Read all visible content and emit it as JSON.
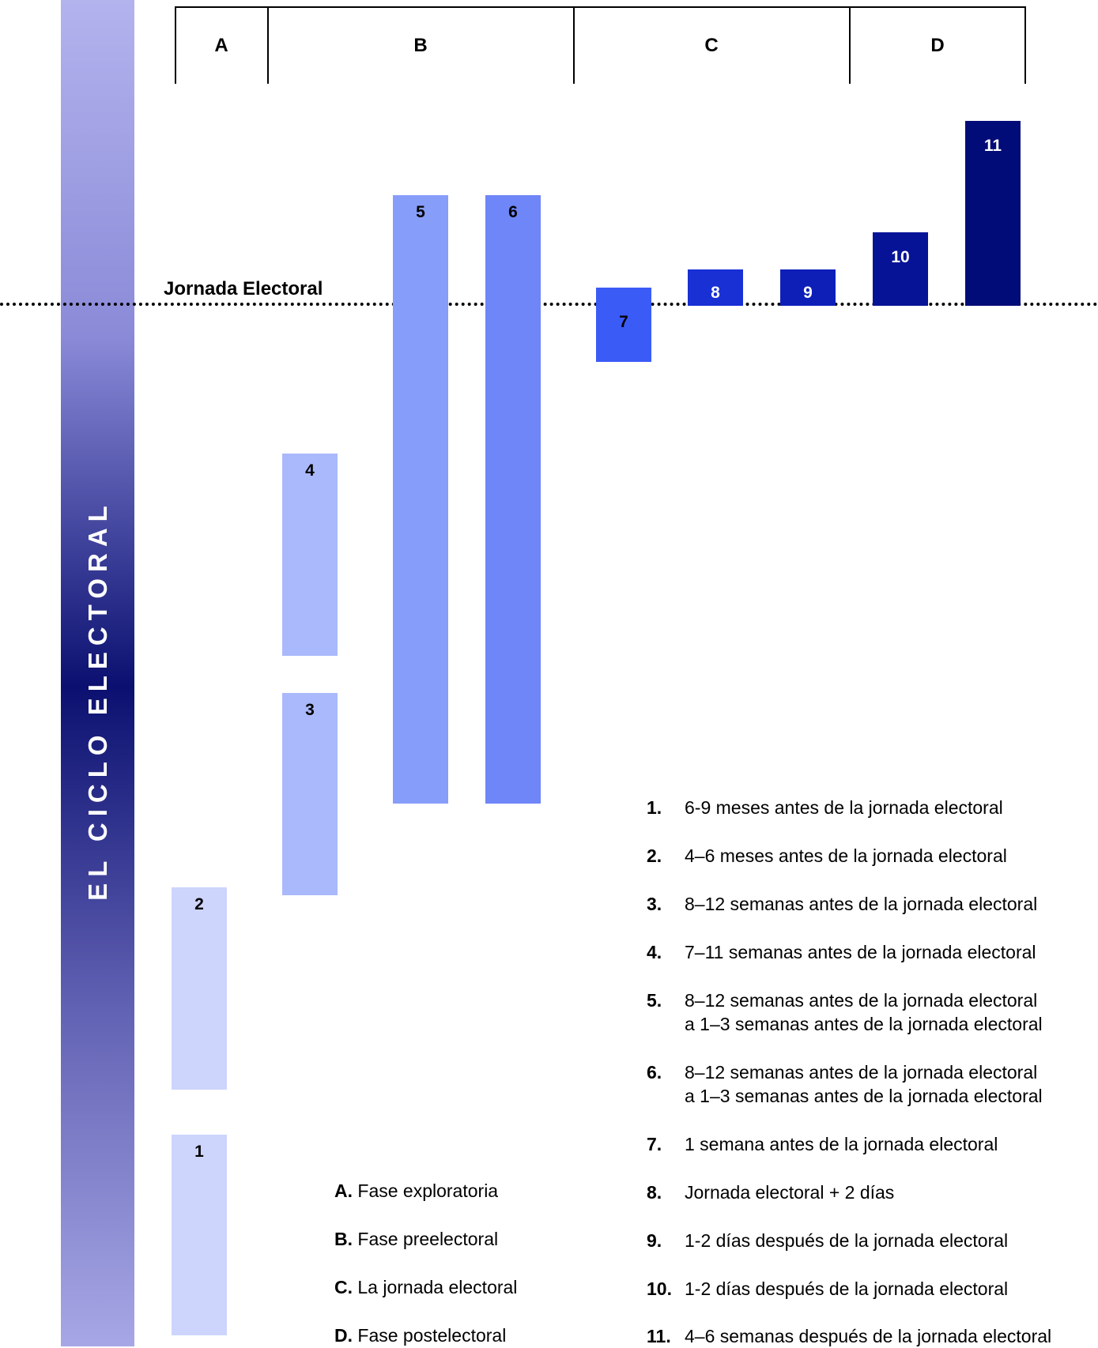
{
  "sidebar": {
    "title": "EL CICLO ELECTORAL",
    "color": "#0b1070"
  },
  "timeline_label": "Jornada Electoral",
  "phases": [
    {
      "letter": "A"
    },
    {
      "letter": "B"
    },
    {
      "letter": "C"
    },
    {
      "letter": "D"
    }
  ],
  "bars": [
    {
      "label": "1",
      "color": "#cdd5fc",
      "text_color": "#000000"
    },
    {
      "label": "2",
      "color": "#cdd5fc",
      "text_color": "#000000"
    },
    {
      "label": "3",
      "color": "#aab9fb",
      "text_color": "#000000"
    },
    {
      "label": "4",
      "color": "#aab9fb",
      "text_color": "#000000"
    },
    {
      "label": "5",
      "color": "#879dfa",
      "text_color": "#000000"
    },
    {
      "label": "6",
      "color": "#6e86f7",
      "text_color": "#000000"
    },
    {
      "label": "7",
      "color": "#3b5bf7",
      "text_color": "#000000"
    },
    {
      "label": "8",
      "color": "#1830d4",
      "text_color": "#ffffff"
    },
    {
      "label": "9",
      "color": "#0e1fb8",
      "text_color": "#ffffff"
    },
    {
      "label": "10",
      "color": "#061396",
      "text_color": "#ffffff"
    },
    {
      "label": "11",
      "color": "#020c78",
      "text_color": "#ffffff"
    }
  ],
  "legend_phases": [
    {
      "key": "A.",
      "text": "Fase exploratoria"
    },
    {
      "key": "B.",
      "text": "Fase preelectoral"
    },
    {
      "key": "C.",
      "text": "La jornada electoral"
    },
    {
      "key": "D.",
      "text": "Fase postelectoral"
    }
  ],
  "legend_steps": [
    {
      "key": "1.",
      "text": "6-9 meses antes de la jornada electoral"
    },
    {
      "key": "2.",
      "text": "4–6 meses antes de la jornada electoral"
    },
    {
      "key": "3.",
      "text": "8–12 semanas antes de la jornada electoral"
    },
    {
      "key": "4.",
      "text": "7–11 semanas antes de la jornada electoral"
    },
    {
      "key": "5.",
      "text": "8–12 semanas antes de la jornada electoral",
      "text2": "a 1–3 semanas antes de la jornada electoral"
    },
    {
      "key": "6.",
      "text": "8–12 semanas antes de la jornada electoral",
      "text2": "a 1–3 semanas antes de la jornada electoral"
    },
    {
      "key": "7.",
      "text": "1 semana antes de la jornada electoral"
    },
    {
      "key": "8.",
      "text": "Jornada electoral + 2 días"
    },
    {
      "key": "9.",
      "text": "1-2 días después de la jornada electoral"
    },
    {
      "key": "10.",
      "text": "1-2 días después de la jornada electoral"
    },
    {
      "key": "11.",
      "text": "4–6 semanas después de la jornada electoral"
    }
  ]
}
